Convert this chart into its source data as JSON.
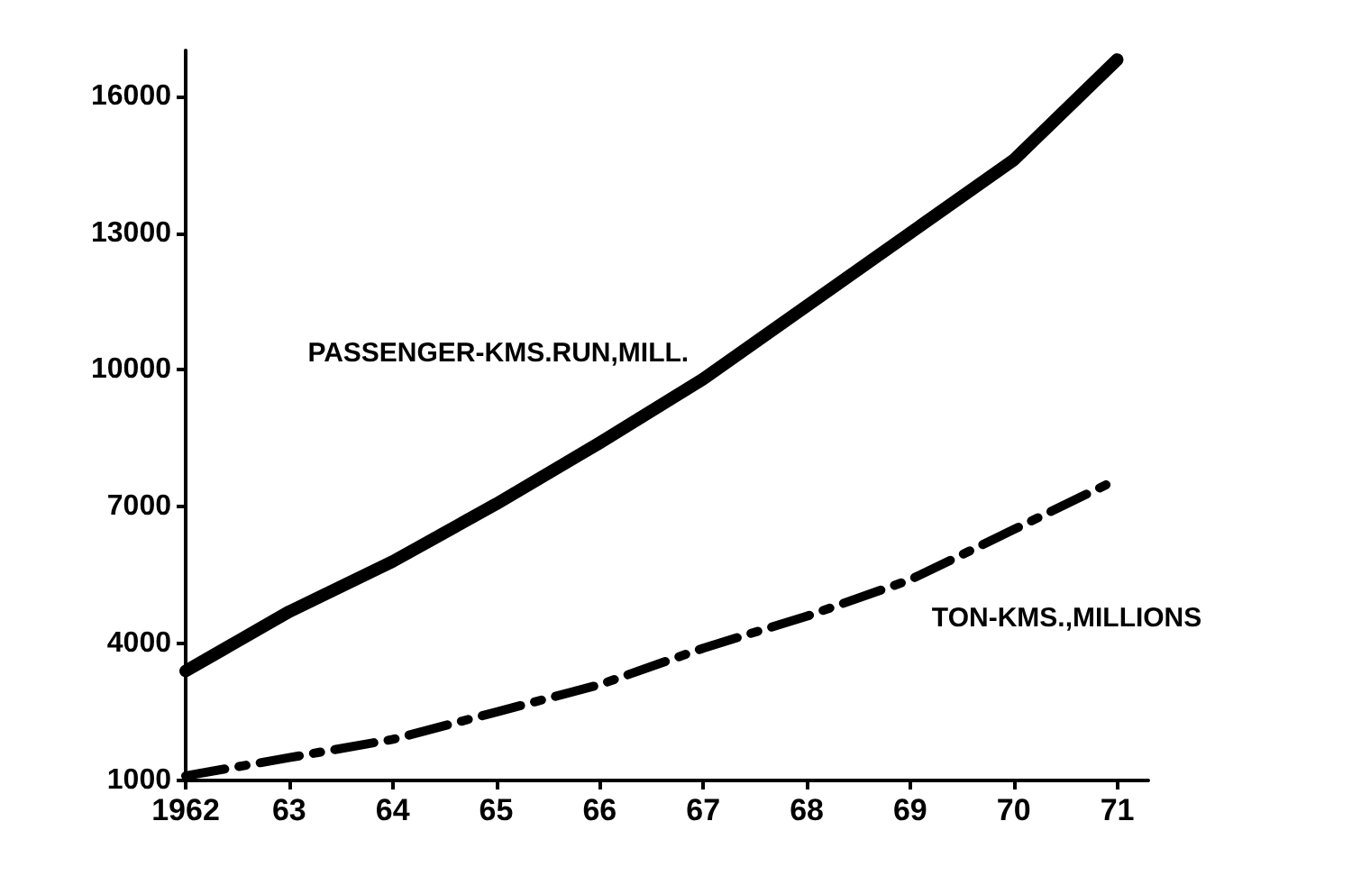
{
  "chart_data": {
    "type": "line",
    "x": [
      1962,
      1963,
      1964,
      1965,
      1966,
      1967,
      1968,
      1969,
      1970,
      1971
    ],
    "series": [
      {
        "name": "PASSENGER-KMS.RUN,MILL.",
        "color": "#000000",
        "line_style": "solid",
        "values": [
          3400,
          4700,
          5800,
          7060,
          8400,
          9800,
          11400,
          13000,
          14600,
          16800
        ]
      },
      {
        "name": "TON-KMS.,MILLIONS",
        "color": "#000000",
        "line_style": "dashed",
        "values": [
          1100,
          1500,
          1900,
          2500,
          3100,
          3900,
          4600,
          5400,
          6500,
          7600
        ]
      }
    ],
    "xlim": [
      1962,
      1971.3
    ],
    "xticks": [
      1962,
      {
        "value": 1963,
        "label": "63"
      },
      {
        "value": 1964,
        "label": "64"
      },
      {
        "value": 1965,
        "label": "65"
      },
      {
        "value": 1966,
        "label": "66"
      },
      {
        "value": 1967,
        "label": "67"
      },
      {
        "value": 1968,
        "label": "68"
      },
      {
        "value": 1969,
        "label": "69"
      },
      {
        "value": 1970,
        "label": "70"
      },
      {
        "value": 1971,
        "label": "71"
      }
    ],
    "ylim": [
      1000,
      17000
    ],
    "yticks": [
      1000,
      4000,
      7000,
      10000,
      13000,
      16000
    ],
    "grid": false,
    "legend": false,
    "marker": "none"
  }
}
